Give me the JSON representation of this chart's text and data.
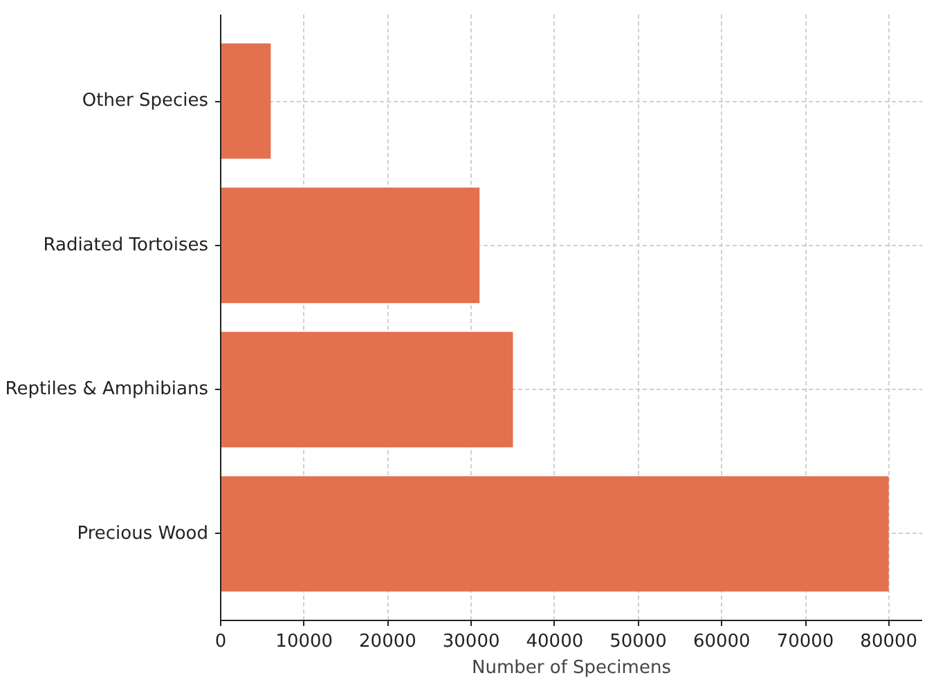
{
  "chart_data": {
    "type": "bar",
    "orientation": "horizontal",
    "xlabel": "Number of Specimens",
    "categories": [
      "Other Species",
      "Radiated Tortoises",
      "Reptiles & Amphibians",
      "Precious Wood"
    ],
    "values": [
      6000,
      31000,
      35000,
      80000
    ],
    "color": "#e3704f",
    "xlim": [
      0,
      84000
    ],
    "xticks": [
      0,
      10000,
      20000,
      30000,
      40000,
      50000,
      60000,
      70000,
      80000
    ],
    "grid": true
  }
}
